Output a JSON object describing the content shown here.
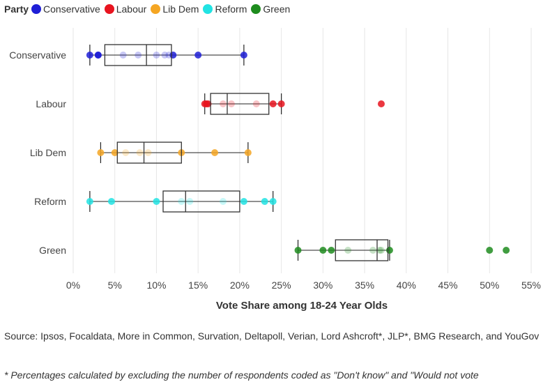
{
  "legend": {
    "title": "Party",
    "items": [
      {
        "label": "Conservative",
        "color": "#1f1fd6"
      },
      {
        "label": "Labour",
        "color": "#e8141f"
      },
      {
        "label": "Lib Dem",
        "color": "#f5a623"
      },
      {
        "label": "Reform",
        "color": "#21e3e3"
      },
      {
        "label": "Green",
        "color": "#1e8c1e"
      }
    ]
  },
  "chart_data": {
    "type": "scatter",
    "subtype": "box plot with jittered points",
    "xlabel": "Vote Share among 18-24 Year Olds",
    "xlim": [
      0,
      55
    ],
    "x_ticks": [
      0,
      5,
      10,
      15,
      20,
      25,
      30,
      35,
      40,
      45,
      50,
      55
    ],
    "x_tick_labels": [
      "0%",
      "5%",
      "10%",
      "15%",
      "20%",
      "25%",
      "30%",
      "35%",
      "40%",
      "45%",
      "50%",
      "55%"
    ],
    "categories": [
      "Conservative",
      "Labour",
      "Lib Dem",
      "Reform",
      "Green"
    ],
    "grid": "vertical",
    "series": [
      {
        "name": "Conservative",
        "color": "#1f1fd6",
        "points": [
          2,
          3,
          3,
          6,
          7.8,
          10,
          11,
          11.5,
          12,
          15,
          20.5
        ],
        "box": {
          "whisker_low": 2,
          "q1": 3.8,
          "median": 8.8,
          "q3": 11.8,
          "whisker_high": 20.5
        },
        "outliers": []
      },
      {
        "name": "Labour",
        "color": "#e8141f",
        "points": [
          15.8,
          16,
          16.2,
          18,
          19,
          22,
          24,
          25
        ],
        "box": {
          "whisker_low": 15.8,
          "q1": 16.5,
          "median": 18.5,
          "q3": 23.5,
          "whisker_high": 25
        },
        "outliers": [
          37
        ]
      },
      {
        "name": "Lib Dem",
        "color": "#f5a623",
        "points": [
          3.3,
          5,
          6.3,
          8,
          9,
          13,
          17,
          21
        ],
        "box": {
          "whisker_low": 3.3,
          "q1": 5.3,
          "median": 8.5,
          "q3": 13,
          "whisker_high": 21
        },
        "outliers": []
      },
      {
        "name": "Reform",
        "color": "#21e3e3",
        "points": [
          2,
          4.6,
          10,
          13,
          14,
          18,
          20.5,
          23,
          24
        ],
        "box": {
          "whisker_low": 2,
          "q1": 10.8,
          "median": 13.5,
          "q3": 20,
          "whisker_high": 24
        },
        "outliers": []
      },
      {
        "name": "Green",
        "color": "#1e8c1e",
        "points": [
          27,
          30,
          31,
          33,
          36,
          36.8,
          37,
          38
        ],
        "box": {
          "whisker_low": 27,
          "q1": 31.5,
          "median": 36.5,
          "q3": 37.8,
          "whisker_high": 38
        },
        "outliers": [
          50,
          52
        ]
      }
    ]
  },
  "source": "Source: Ipsos, Focaldata, More in Common, Survation, Deltapoll, Verian, Lord Ashcroft*, JLP*, BMG Research, and YouGov",
  "footnote": "* Percentages calculated by excluding the number of respondents coded as \"Don't know\" and \"Would not vote"
}
